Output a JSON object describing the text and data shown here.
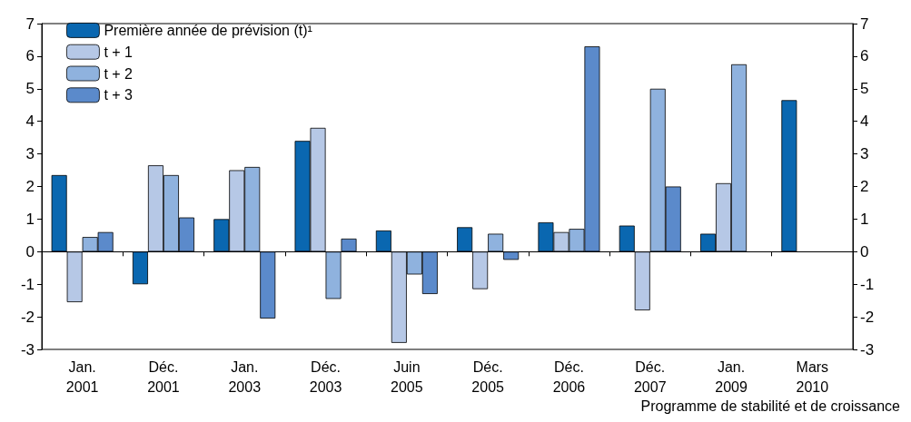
{
  "chart_data": {
    "type": "bar",
    "categories": [
      "Jan.\n2001",
      "Déc.\n2001",
      "Jan.\n2003",
      "Déc.\n2003",
      "Juin\n2005",
      "Déc.\n2005",
      "Déc.\n2006",
      "Déc.\n2007",
      "Jan.\n2009",
      "Mars\n2010"
    ],
    "series": [
      {
        "name": "Première année de prévision (t)¹",
        "color": "#0a67b0",
        "values": [
          2.35,
          -1.0,
          1.0,
          3.4,
          0.65,
          0.75,
          0.9,
          0.8,
          0.55,
          4.65
        ]
      },
      {
        "name": "t + 1",
        "color": "#b6c8e6",
        "values": [
          -1.55,
          2.65,
          2.5,
          3.8,
          -2.8,
          -1.15,
          0.6,
          -1.8,
          2.1,
          null
        ]
      },
      {
        "name": "t + 2",
        "color": "#8fb2de",
        "values": [
          0.45,
          2.35,
          2.6,
          -1.45,
          -0.7,
          0.55,
          0.7,
          5.0,
          5.75,
          null
        ]
      },
      {
        "name": "t + 3",
        "color": "#5b8acb",
        "values": [
          0.6,
          1.05,
          -2.05,
          0.4,
          -1.3,
          -0.25,
          6.3,
          2.0,
          null,
          null
        ]
      }
    ],
    "ylim": [
      -3,
      7
    ],
    "yticks": [
      -3,
      -2,
      -1,
      0,
      1,
      2,
      3,
      4,
      5,
      6,
      7
    ],
    "y2lim": [
      -3,
      7
    ],
    "y2ticks": [
      -3,
      -2,
      -1,
      0,
      1,
      2,
      3,
      4,
      5,
      6,
      7
    ],
    "legend": "top left",
    "annotations": [
      "Programme de stabilité et de croissance"
    ]
  }
}
